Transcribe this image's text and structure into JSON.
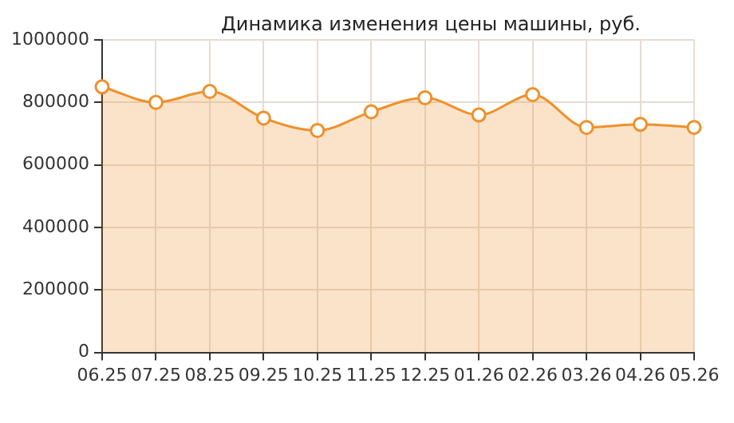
{
  "chart_data": {
    "type": "area",
    "title": "Динамика изменения цены машины, руб.",
    "categories": [
      "06.25",
      "07.25",
      "08.25",
      "09.25",
      "10.25",
      "11.25",
      "12.25",
      "01.26",
      "02.26",
      "03.26",
      "04.26",
      "05.26"
    ],
    "series": [
      {
        "color": "#f0902a",
        "values": [
          850000,
          800000,
          835000,
          750000,
          710000,
          770000,
          815000,
          760000,
          825000,
          720000,
          730000,
          720000
        ]
      }
    ],
    "ylim": [
      0,
      1000000
    ],
    "yticks": [
      0,
      200000,
      400000,
      600000,
      800000,
      1000000
    ],
    "grid": true,
    "marker": "circle",
    "line_style": "solid",
    "legend": false
  }
}
